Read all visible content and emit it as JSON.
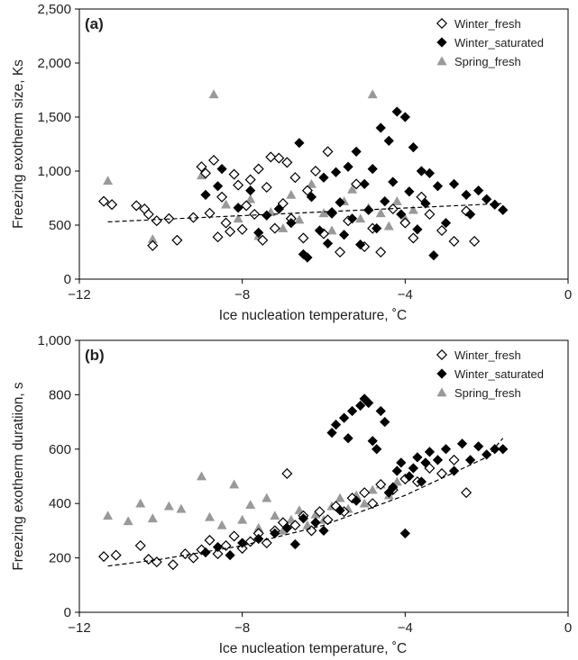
{
  "chart_data": [
    {
      "type": "scatter",
      "panel_label": "(a)",
      "xlabel": "Ice nucleation temperature, ˚C",
      "ylabel": "Freezing exotherm size, Ks",
      "xlim": [
        -12,
        0
      ],
      "ylim": [
        0,
        2500
      ],
      "xticks": [
        -12,
        -8,
        -4,
        0
      ],
      "xtick_labels": [
        "−12",
        "−8",
        "−4",
        "0"
      ],
      "yticks": [
        0,
        500,
        1000,
        1500,
        2000,
        2500
      ],
      "ytick_labels": [
        "0",
        "500",
        "1,000",
        "1,500",
        "2,000",
        "2,500"
      ],
      "grid": false,
      "legend_position": "top-right",
      "trendline": {
        "style": "dashed",
        "x": [
          -11.3,
          -1.6
        ],
        "y": [
          530,
          700
        ]
      },
      "series": [
        {
          "name": "Winter_fresh",
          "marker": "diamond-open",
          "color": "#000000",
          "points": [
            [
              -11.4,
              720
            ],
            [
              -11.2,
              690
            ],
            [
              -10.6,
              680
            ],
            [
              -10.4,
              650
            ],
            [
              -10.3,
              600
            ],
            [
              -10.2,
              310
            ],
            [
              -10.1,
              540
            ],
            [
              -9.8,
              560
            ],
            [
              -9.6,
              360
            ],
            [
              -9.2,
              570
            ],
            [
              -9.0,
              1040
            ],
            [
              -8.9,
              980
            ],
            [
              -8.8,
              610
            ],
            [
              -8.7,
              1100
            ],
            [
              -8.6,
              390
            ],
            [
              -8.5,
              760
            ],
            [
              -8.4,
              520
            ],
            [
              -8.3,
              440
            ],
            [
              -8.2,
              970
            ],
            [
              -8.1,
              870
            ],
            [
              -8.0,
              460
            ],
            [
              -7.9,
              680
            ],
            [
              -7.8,
              920
            ],
            [
              -7.7,
              600
            ],
            [
              -7.6,
              1020
            ],
            [
              -7.5,
              360
            ],
            [
              -7.4,
              850
            ],
            [
              -7.3,
              1130
            ],
            [
              -7.2,
              470
            ],
            [
              -7.1,
              1120
            ],
            [
              -7.0,
              700
            ],
            [
              -6.9,
              1080
            ],
            [
              -6.8,
              560
            ],
            [
              -6.7,
              940
            ],
            [
              -6.5,
              380
            ],
            [
              -6.4,
              820
            ],
            [
              -6.2,
              1000
            ],
            [
              -6.0,
              420
            ],
            [
              -5.9,
              1180
            ],
            [
              -5.8,
              610
            ],
            [
              -5.6,
              250
            ],
            [
              -5.4,
              540
            ],
            [
              -5.2,
              880
            ],
            [
              -5.0,
              300
            ],
            [
              -4.8,
              470
            ],
            [
              -4.6,
              250
            ],
            [
              -4.3,
              650
            ],
            [
              -4.0,
              520
            ],
            [
              -3.8,
              380
            ],
            [
              -3.6,
              760
            ],
            [
              -3.4,
              600
            ],
            [
              -3.1,
              450
            ],
            [
              -2.8,
              350
            ],
            [
              -2.5,
              630
            ],
            [
              -2.3,
              350
            ]
          ]
        },
        {
          "name": "Winter_saturated",
          "marker": "diamond-filled",
          "color": "#000000",
          "points": [
            [
              -8.9,
              780
            ],
            [
              -8.6,
              860
            ],
            [
              -8.5,
              1020
            ],
            [
              -8.1,
              660
            ],
            [
              -7.8,
              820
            ],
            [
              -7.6,
              430
            ],
            [
              -7.4,
              590
            ],
            [
              -7.1,
              650
            ],
            [
              -6.8,
              520
            ],
            [
              -6.6,
              1260
            ],
            [
              -6.5,
              230
            ],
            [
              -6.4,
              200
            ],
            [
              -6.3,
              760
            ],
            [
              -6.1,
              450
            ],
            [
              -6.0,
              940
            ],
            [
              -5.9,
              330
            ],
            [
              -5.8,
              620
            ],
            [
              -5.7,
              990
            ],
            [
              -5.6,
              710
            ],
            [
              -5.5,
              410
            ],
            [
              -5.4,
              1040
            ],
            [
              -5.3,
              560
            ],
            [
              -5.2,
              1180
            ],
            [
              -5.1,
              320
            ],
            [
              -5.0,
              880
            ],
            [
              -4.9,
              640
            ],
            [
              -4.8,
              1020
            ],
            [
              -4.7,
              470
            ],
            [
              -4.6,
              1400
            ],
            [
              -4.5,
              720
            ],
            [
              -4.4,
              1280
            ],
            [
              -4.3,
              900
            ],
            [
              -4.2,
              1550
            ],
            [
              -4.1,
              600
            ],
            [
              -4.0,
              1500
            ],
            [
              -3.9,
              810
            ],
            [
              -3.8,
              1220
            ],
            [
              -3.7,
              460
            ],
            [
              -3.6,
              1000
            ],
            [
              -3.5,
              700
            ],
            [
              -3.4,
              980
            ],
            [
              -3.3,
              220
            ],
            [
              -3.2,
              860
            ],
            [
              -3.0,
              520
            ],
            [
              -2.8,
              880
            ],
            [
              -2.5,
              780
            ],
            [
              -2.4,
              600
            ],
            [
              -2.2,
              820
            ],
            [
              -2.0,
              740
            ],
            [
              -1.8,
              690
            ],
            [
              -1.6,
              640
            ]
          ]
        },
        {
          "name": "Spring_fresh",
          "marker": "triangle-filled",
          "color": "#999999",
          "points": [
            [
              -11.3,
              910
            ],
            [
              -10.2,
              370
            ],
            [
              -9.0,
              960
            ],
            [
              -8.7,
              1710
            ],
            [
              -8.4,
              690
            ],
            [
              -8.1,
              560
            ],
            [
              -7.8,
              740
            ],
            [
              -7.6,
              400
            ],
            [
              -7.3,
              620
            ],
            [
              -7.0,
              470
            ],
            [
              -6.8,
              780
            ],
            [
              -6.6,
              550
            ],
            [
              -6.3,
              880
            ],
            [
              -6.0,
              610
            ],
            [
              -5.8,
              450
            ],
            [
              -5.5,
              720
            ],
            [
              -5.3,
              830
            ],
            [
              -5.1,
              560
            ],
            [
              -4.9,
              660
            ],
            [
              -4.8,
              1710
            ],
            [
              -4.6,
              610
            ],
            [
              -4.4,
              490
            ],
            [
              -4.2,
              720
            ],
            [
              -4.0,
              560
            ],
            [
              -3.8,
              640
            ]
          ]
        }
      ]
    },
    {
      "type": "scatter",
      "panel_label": "(b)",
      "xlabel": "Ice nucleation temperature, ˚C",
      "ylabel": "Freezing exotherm duratiion, s",
      "xlim": [
        -12,
        0
      ],
      "ylim": [
        0,
        1000
      ],
      "xticks": [
        -12,
        -8,
        -4,
        0
      ],
      "xtick_labels": [
        "−12",
        "−8",
        "−4",
        "0"
      ],
      "yticks": [
        0,
        200,
        400,
        600,
        800,
        1000
      ],
      "ytick_labels": [
        "0",
        "200",
        "400",
        "600",
        "800",
        "1,000"
      ],
      "grid": false,
      "legend_position": "top-right",
      "trendline": {
        "style": "dashed",
        "x": [
          -11.3,
          -10,
          -8,
          -6,
          -4,
          -2,
          -1.6
        ],
        "y": [
          170,
          195,
          245,
          320,
          430,
          570,
          640
        ]
      },
      "series": [
        {
          "name": "Winter_fresh",
          "marker": "diamond-open",
          "color": "#000000",
          "points": [
            [
              -11.4,
              205
            ],
            [
              -11.1,
              210
            ],
            [
              -10.5,
              245
            ],
            [
              -10.3,
              195
            ],
            [
              -10.1,
              185
            ],
            [
              -9.7,
              175
            ],
            [
              -9.4,
              215
            ],
            [
              -9.2,
              200
            ],
            [
              -9.0,
              230
            ],
            [
              -8.8,
              265
            ],
            [
              -8.6,
              215
            ],
            [
              -8.4,
              245
            ],
            [
              -8.2,
              280
            ],
            [
              -8.0,
              235
            ],
            [
              -7.8,
              260
            ],
            [
              -7.6,
              290
            ],
            [
              -7.4,
              255
            ],
            [
              -7.2,
              300
            ],
            [
              -7.0,
              330
            ],
            [
              -6.9,
              510
            ],
            [
              -6.7,
              320
            ],
            [
              -6.5,
              355
            ],
            [
              -6.3,
              300
            ],
            [
              -6.1,
              370
            ],
            [
              -5.9,
              340
            ],
            [
              -5.7,
              390
            ],
            [
              -5.5,
              370
            ],
            [
              -5.3,
              420
            ],
            [
              -5.0,
              440
            ],
            [
              -4.8,
              400
            ],
            [
              -4.6,
              470
            ],
            [
              -4.3,
              450
            ],
            [
              -4.0,
              490
            ],
            [
              -3.7,
              480
            ],
            [
              -3.4,
              530
            ],
            [
              -3.1,
              510
            ],
            [
              -2.8,
              560
            ],
            [
              -2.5,
              440
            ]
          ]
        },
        {
          "name": "Winter_saturated",
          "marker": "diamond-filled",
          "color": "#000000",
          "points": [
            [
              -8.9,
              220
            ],
            [
              -8.6,
              240
            ],
            [
              -8.3,
              210
            ],
            [
              -8.0,
              255
            ],
            [
              -7.6,
              270
            ],
            [
              -7.2,
              290
            ],
            [
              -6.9,
              310
            ],
            [
              -6.7,
              250
            ],
            [
              -6.5,
              345
            ],
            [
              -6.2,
              330
            ],
            [
              -6.0,
              300
            ],
            [
              -5.8,
              660
            ],
            [
              -5.7,
              690
            ],
            [
              -5.6,
              375
            ],
            [
              -5.5,
              715
            ],
            [
              -5.4,
              640
            ],
            [
              -5.3,
              740
            ],
            [
              -5.2,
              410
            ],
            [
              -5.1,
              760
            ],
            [
              -5.0,
              785
            ],
            [
              -4.9,
              770
            ],
            [
              -4.8,
              630
            ],
            [
              -4.7,
              600
            ],
            [
              -4.6,
              740
            ],
            [
              -4.5,
              700
            ],
            [
              -4.4,
              440
            ],
            [
              -4.3,
              460
            ],
            [
              -4.2,
              520
            ],
            [
              -4.1,
              550
            ],
            [
              -4.0,
              290
            ],
            [
              -3.9,
              500
            ],
            [
              -3.8,
              530
            ],
            [
              -3.7,
              570
            ],
            [
              -3.6,
              480
            ],
            [
              -3.5,
              550
            ],
            [
              -3.4,
              590
            ],
            [
              -3.2,
              560
            ],
            [
              -3.0,
              600
            ],
            [
              -2.8,
              520
            ],
            [
              -2.6,
              620
            ],
            [
              -2.4,
              560
            ],
            [
              -2.2,
              610
            ],
            [
              -2.0,
              580
            ],
            [
              -1.8,
              600
            ],
            [
              -1.6,
              600
            ]
          ]
        },
        {
          "name": "Spring_fresh",
          "marker": "triangle-filled",
          "color": "#999999",
          "points": [
            [
              -11.3,
              355
            ],
            [
              -10.8,
              335
            ],
            [
              -10.5,
              400
            ],
            [
              -10.2,
              345
            ],
            [
              -9.8,
              390
            ],
            [
              -9.5,
              380
            ],
            [
              -9.0,
              500
            ],
            [
              -8.8,
              350
            ],
            [
              -8.5,
              320
            ],
            [
              -8.2,
              470
            ],
            [
              -8.0,
              340
            ],
            [
              -7.8,
              395
            ],
            [
              -7.6,
              310
            ],
            [
              -7.4,
              420
            ],
            [
              -7.2,
              355
            ],
            [
              -7.0,
              300
            ],
            [
              -6.8,
              340
            ],
            [
              -6.6,
              375
            ],
            [
              -6.4,
              320
            ],
            [
              -6.2,
              360
            ],
            [
              -6.0,
              340
            ],
            [
              -5.8,
              390
            ],
            [
              -5.6,
              420
            ],
            [
              -5.4,
              380
            ],
            [
              -5.2,
              430
            ],
            [
              -5.0,
              400
            ],
            [
              -4.8,
              450
            ],
            [
              -4.6,
              470
            ],
            [
              -4.4,
              430
            ],
            [
              -4.2,
              480
            ]
          ]
        }
      ]
    }
  ]
}
